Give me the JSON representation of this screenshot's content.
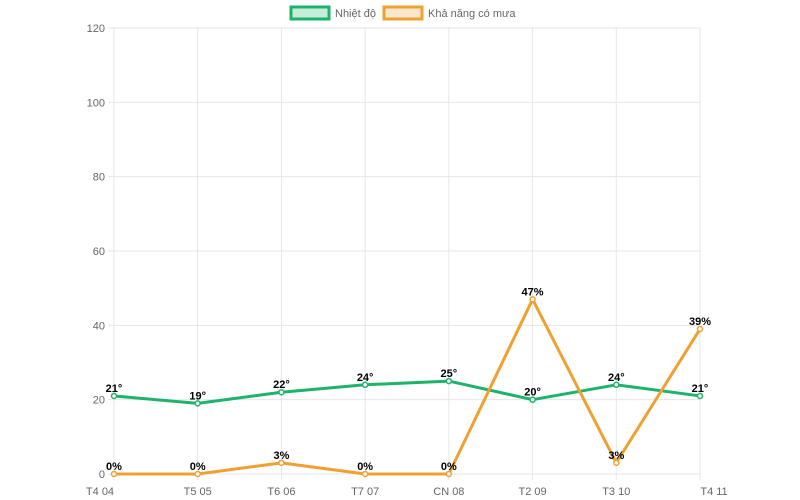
{
  "chart_data": {
    "type": "line",
    "title": "",
    "xlabel": "",
    "ylabel": "",
    "categories": [
      "T4 04",
      "T5 05",
      "T6 06",
      "T7 07",
      "CN 08",
      "T2 09",
      "T3 10",
      "T4 11"
    ],
    "ylim": [
      0,
      120
    ],
    "yticks": [
      "0",
      "20",
      "40",
      "60",
      "80",
      "100",
      "120"
    ],
    "grid": true,
    "legend_position": "top-center",
    "series": [
      {
        "name": "Nhiệt độ",
        "color": "#1db36b",
        "values": [
          21,
          19,
          22,
          24,
          25,
          20,
          24,
          21
        ],
        "labels": [
          "21°",
          "19°",
          "22°",
          "24°",
          "25°",
          "20°",
          "24°",
          "21°"
        ]
      },
      {
        "name": "Khả năng có mưa",
        "color": "#f0a030",
        "values": [
          0,
          0,
          3,
          0,
          0,
          47,
          3,
          39
        ],
        "labels": [
          "0%",
          "0%",
          "3%",
          "0%",
          "0%",
          "47%",
          "3%",
          "39%"
        ]
      }
    ]
  }
}
